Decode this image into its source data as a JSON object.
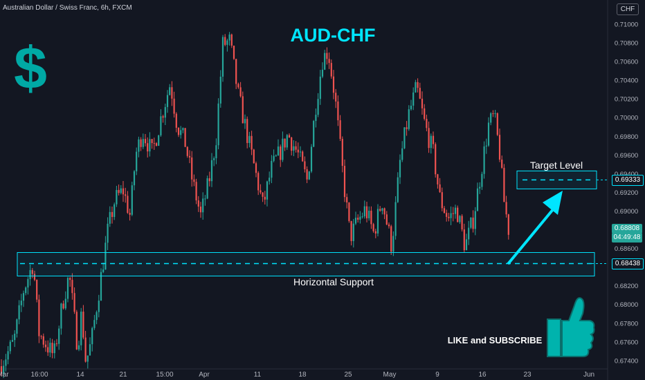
{
  "header": {
    "instrument": "Australian Dollar / Swiss Franc, 6h, FXCM",
    "currency": "CHF"
  },
  "chart_data": {
    "type": "candlestick",
    "title": "AUD-CHF",
    "y_ticks": [
      0.71,
      0.708,
      0.706,
      0.704,
      0.702,
      0.7,
      0.698,
      0.696,
      0.694,
      0.692,
      0.69,
      0.688,
      0.686,
      0.684,
      0.682,
      0.68,
      0.678,
      0.676,
      0.674
    ],
    "y_tick_labels": [
      "0.71000",
      "0.70800",
      "0.70600",
      "0.70400",
      "0.70200",
      "0.70000",
      "0.69800",
      "0.69600",
      "0.69400",
      "0.69200",
      "0.69000",
      "0.68800",
      "0.68600",
      "0.68400",
      "0.68200",
      "0.68000",
      "0.67800",
      "0.67600",
      "0.67400"
    ],
    "ylim": [
      0.6734,
      0.7114
    ],
    "x_labels": [
      "Mar",
      "16:00",
      "14",
      "21",
      "15:00",
      "Apr",
      "11",
      "18",
      "25",
      "May",
      "9",
      "16",
      "23",
      "Jun"
    ],
    "price_path": [
      [
        0,
        0.6734
      ],
      [
        20,
        0.676
      ],
      [
        34,
        0.6815
      ],
      [
        48,
        0.6845
      ],
      [
        56,
        0.677
      ],
      [
        66,
        0.6758
      ],
      [
        78,
        0.6745
      ],
      [
        90,
        0.68
      ],
      [
        100,
        0.6832
      ],
      [
        112,
        0.6755
      ],
      [
        118,
        0.6792
      ],
      [
        124,
        0.6738
      ],
      [
        132,
        0.676
      ],
      [
        140,
        0.68
      ],
      [
        148,
        0.684
      ],
      [
        156,
        0.688
      ],
      [
        166,
        0.6912
      ],
      [
        178,
        0.6922
      ],
      [
        188,
        0.6895
      ],
      [
        196,
        0.696
      ],
      [
        206,
        0.6985
      ],
      [
        220,
        0.6962
      ],
      [
        232,
        0.6998
      ],
      [
        246,
        0.7037
      ],
      [
        256,
        0.6992
      ],
      [
        268,
        0.6972
      ],
      [
        278,
        0.6932
      ],
      [
        290,
        0.6895
      ],
      [
        302,
        0.6932
      ],
      [
        312,
        0.6975
      ],
      [
        322,
        0.7078
      ],
      [
        332,
        0.7082
      ],
      [
        344,
        0.7025
      ],
      [
        356,
        0.6985
      ],
      [
        368,
        0.6945
      ],
      [
        380,
        0.6905
      ],
      [
        392,
        0.6945
      ],
      [
        404,
        0.6962
      ],
      [
        416,
        0.6982
      ],
      [
        430,
        0.6962
      ],
      [
        444,
        0.6932
      ],
      [
        456,
        0.7012
      ],
      [
        466,
        0.7062
      ],
      [
        474,
        0.7072
      ],
      [
        484,
        0.7022
      ],
      [
        496,
        0.6935
      ],
      [
        506,
        0.6872
      ],
      [
        516,
        0.6888
      ],
      [
        528,
        0.6902
      ],
      [
        540,
        0.6876
      ],
      [
        552,
        0.6912
      ],
      [
        566,
        0.6862
      ],
      [
        578,
        0.6952
      ],
      [
        590,
        0.7002
      ],
      [
        602,
        0.7032
      ],
      [
        614,
        0.6992
      ],
      [
        626,
        0.6962
      ],
      [
        636,
        0.6912
      ],
      [
        648,
        0.6892
      ],
      [
        660,
        0.6902
      ],
      [
        672,
        0.6862
      ],
      [
        684,
        0.6892
      ],
      [
        694,
        0.6938
      ],
      [
        706,
        0.6992
      ],
      [
        714,
        0.7002
      ],
      [
        722,
        0.6962
      ],
      [
        728,
        0.6912
      ],
      [
        735,
        0.688
      ]
    ],
    "horizontal_support_level": 0.68438,
    "horizontal_support_label": "Horizontal Support",
    "target_level": 0.69333,
    "target_label": "Target Level",
    "last_price": "0.68808",
    "countdown": "04:49:48",
    "target_price_label": "0.69333",
    "support_price_label": "0.68438",
    "call_to_action": "LIKE and SUBSCRIBE",
    "colors": {
      "up": "#26a69a",
      "down": "#ef5350",
      "accent": "#00e5ff",
      "title": "#00e5ff",
      "last_price_bg": "#26a69a"
    }
  }
}
